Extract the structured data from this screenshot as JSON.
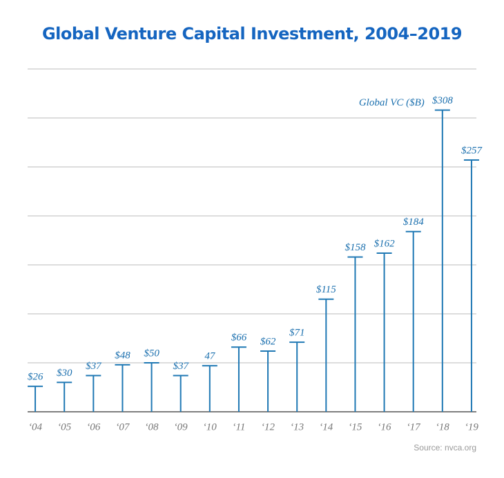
{
  "chart_data": {
    "type": "bar",
    "title": "Global Venture Capital Investment, 2004–2019",
    "categories": [
      "‘04",
      "‘05",
      "‘06",
      "‘07",
      "‘08",
      "‘09",
      "‘10",
      "‘11",
      "‘12",
      "‘13",
      "‘14",
      "‘15",
      "‘16",
      "‘17",
      "‘18",
      "‘19"
    ],
    "series": [
      {
        "name": "Global VC ($B)",
        "color": "#1f78b4",
        "values": [
          26,
          30,
          37,
          48,
          50,
          37,
          47,
          66,
          62,
          71,
          115,
          158,
          162,
          184,
          308,
          257
        ],
        "value_labels": [
          "$26",
          "$30",
          "$37",
          "$48",
          "$50",
          "$37",
          "47",
          "$66",
          "$62",
          "$71",
          "$115",
          "$158",
          "$162",
          "$184",
          "$308",
          "$257"
        ]
      }
    ],
    "ylim": [
      0,
      350
    ],
    "yticks": [
      0,
      50,
      100,
      150,
      200,
      250,
      300,
      350
    ],
    "grid": true,
    "source": "Source: nvca.org"
  }
}
